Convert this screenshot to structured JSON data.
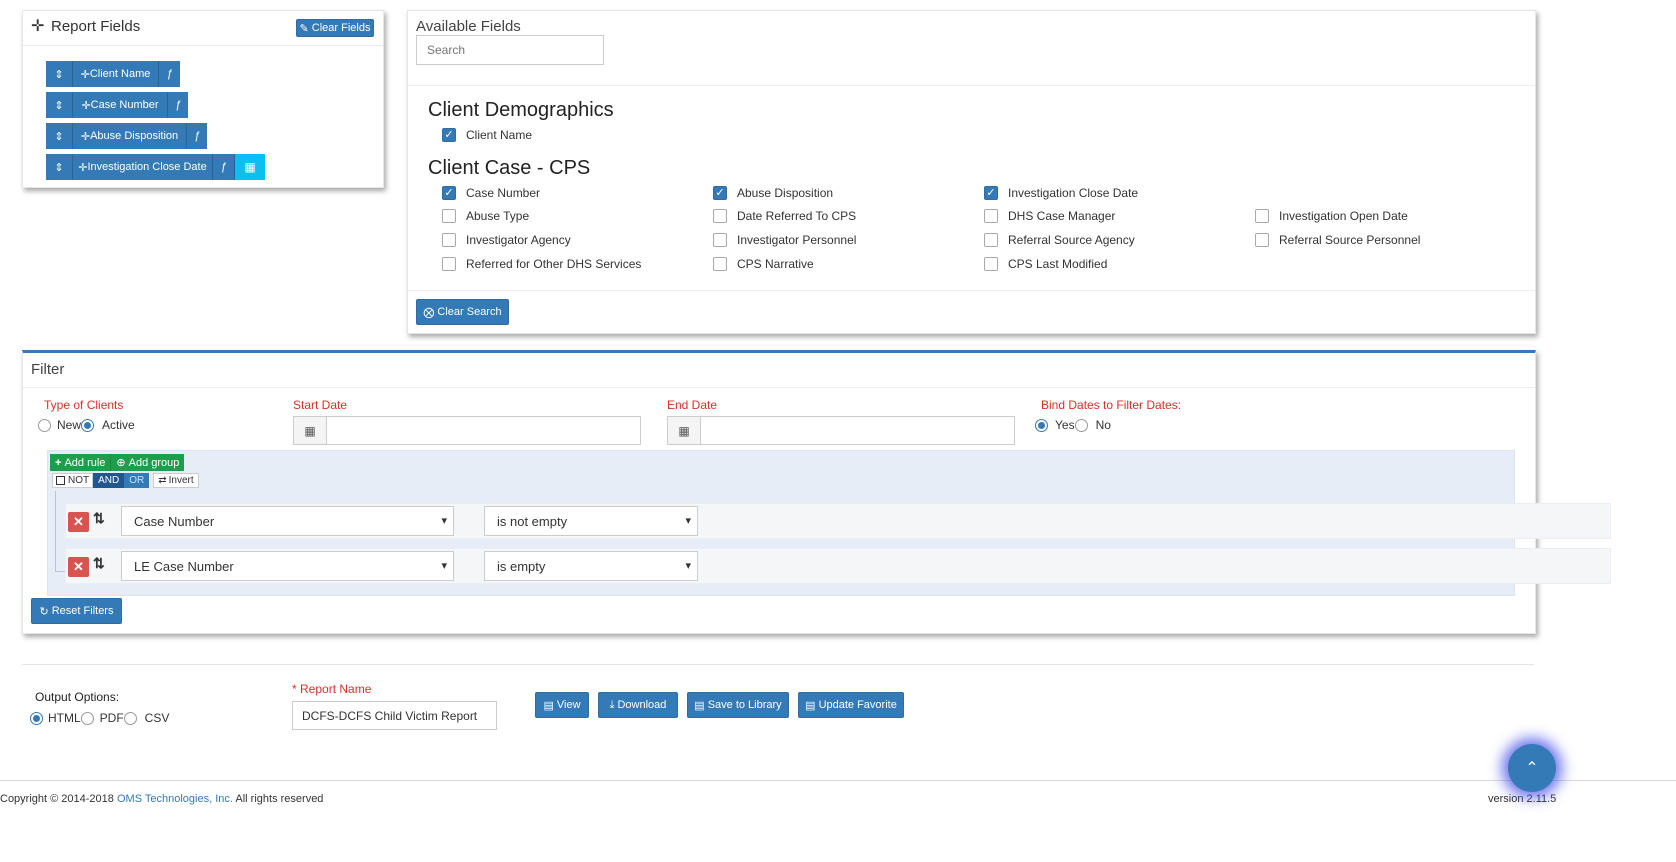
{
  "report_fields": {
    "title": "Report Fields",
    "clear_label": "Clear Fields",
    "fields": [
      "Client Name",
      "Case Number",
      "Abuse Disposition",
      "Investigation Close Date"
    ],
    "sort_glyph": "⇕",
    "func_glyph": "ƒ",
    "move_glyph": "✛"
  },
  "available_fields": {
    "title": "Available Fields",
    "search_placeholder": "Search",
    "group1": {
      "title": "Client Demographics",
      "items": [
        {
          "label": "Client Name",
          "checked": true
        }
      ]
    },
    "group2": {
      "title": "Client Case - CPS",
      "items": [
        {
          "label": "Case Number",
          "checked": true
        },
        {
          "label": "Abuse Disposition",
          "checked": true
        },
        {
          "label": "Investigation Close Date",
          "checked": true
        },
        {
          "label": "Abuse Type",
          "checked": false
        },
        {
          "label": "Date Referred To CPS",
          "checked": false
        },
        {
          "label": "DHS Case Manager",
          "checked": false
        },
        {
          "label": "Investigation Open Date",
          "checked": false
        },
        {
          "label": "Investigator Agency",
          "checked": false
        },
        {
          "label": "Investigator Personnel",
          "checked": false
        },
        {
          "label": "Referral Source Agency",
          "checked": false
        },
        {
          "label": "Referral Source Personnel",
          "checked": false
        },
        {
          "label": "Referred for Other DHS Services",
          "checked": false
        },
        {
          "label": "CPS Narrative",
          "checked": false
        },
        {
          "label": "CPS Last Modified",
          "checked": false
        }
      ]
    },
    "clear_search_label": "Clear Search"
  },
  "filter": {
    "title": "Filter",
    "type_label": "Type of Clients",
    "type_new": "New",
    "type_active": "Active",
    "start_label": "Start Date",
    "end_label": "End Date",
    "bind_label": "Bind Dates to Filter Dates:",
    "bind_yes": "Yes",
    "bind_no": "No",
    "add_rule": "Add rule",
    "add_group": "Add group",
    "not_label": "NOT",
    "and_label": "AND",
    "or_label": "OR",
    "invert_label": "Invert",
    "rules": [
      {
        "field": "Case Number",
        "operator": "is not empty"
      },
      {
        "field": "LE Case Number",
        "operator": "is empty"
      }
    ],
    "reset_label": "Reset Filters"
  },
  "output": {
    "label": "Output Options:",
    "html": "HTML",
    "pdf": "PDF",
    "csv": "CSV",
    "report_name_label": "Report Name",
    "report_name_value": "DCFS-DCFS Child Victim Report",
    "view": "View",
    "download": "Download",
    "save": "Save to Library",
    "update": "Update Favorite"
  },
  "footer": {
    "copyright_prefix": "Copyright © 2014-2018",
    "company": "OMS Technologies, Inc.",
    "rights": "All rights reserved",
    "version": "version 2.11.5"
  },
  "colors": {
    "primary": "#337ab7",
    "info": "#0bc0ef",
    "success": "#1e9e4d",
    "danger": "#d9534f",
    "required": "#d9302a"
  }
}
